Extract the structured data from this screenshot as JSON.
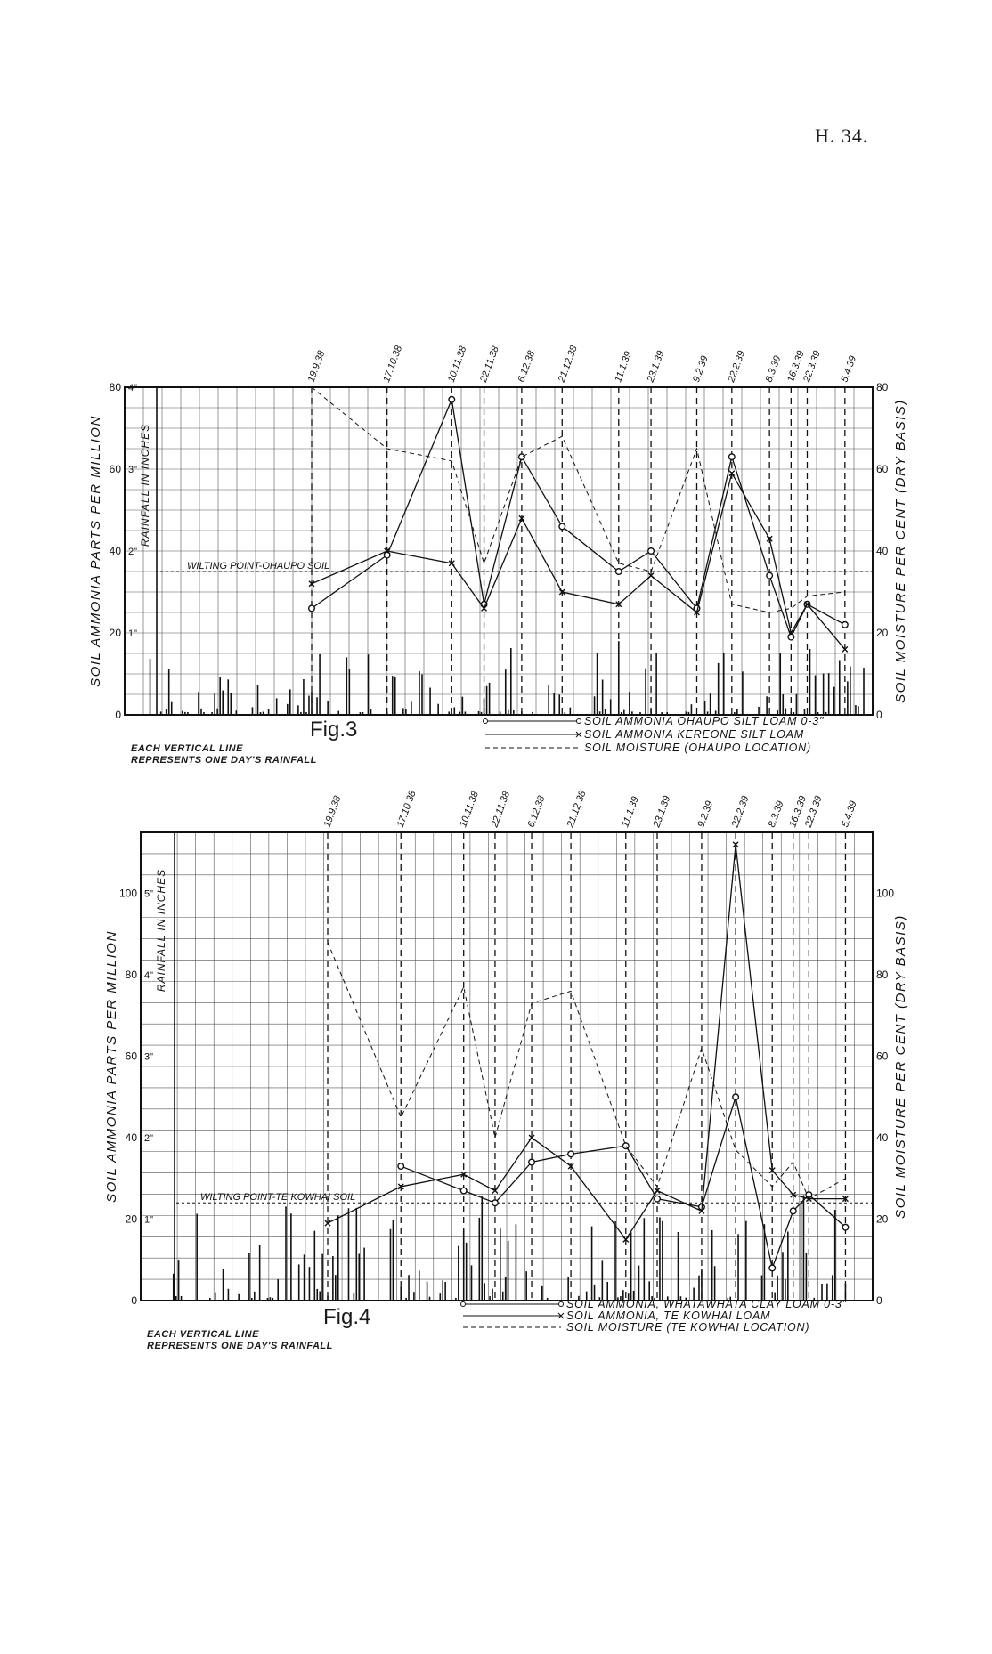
{
  "page_header": "H. 34.",
  "chart_data": [
    {
      "type": "line",
      "fig_label": "Fig.3",
      "note_lines": [
        "EACH VERTICAL LINE",
        "REPRESENTS ONE DAY'S RAINFALL"
      ],
      "left_axis_label": "SOIL AMMONIA PARTS PER MILLION",
      "rain_axis_label": "RAINFALL IN INCHES",
      "right_axis_label": "SOIL MOISTURE PER CENT (DRY BASIS)",
      "left_ticks": [
        "0",
        "20",
        "40",
        "60",
        "80"
      ],
      "rain_ticks": [
        "1\"",
        "2\"",
        "3\"",
        "4\""
      ],
      "right_ticks": [
        "0",
        "20",
        "40",
        "60",
        "80"
      ],
      "ylim": [
        0,
        80
      ],
      "xlim_days": [
        0,
        220
      ],
      "sample_dates": [
        "19.9.38",
        "17.10.38",
        "10.11.38",
        "22.11.38",
        "6.12.38",
        "21.12.38",
        "11.1.39",
        "23.1.39",
        "9.2.39",
        "22.2.39",
        "8.3.39",
        "16.3.39",
        "22.3.39",
        "5.4.39"
      ],
      "wilting_label": "WILTING POINT-OHAUPO SOIL",
      "wilting_value": 35,
      "series": [
        {
          "name": "SOIL AMMONIA OHAUPO SILT LOAM 0-3\"",
          "style": "solid-circle",
          "values": [
            26,
            39,
            77,
            27,
            63,
            46,
            35,
            40,
            26,
            63,
            34,
            19,
            27,
            22
          ]
        },
        {
          "name": "SOIL AMMONIA KEREONE SILT LOAM",
          "style": "solid-cross",
          "values": [
            32,
            40,
            37,
            26,
            48,
            30,
            27,
            34,
            25,
            59,
            43,
            20,
            27,
            16
          ]
        },
        {
          "name": "SOIL MOISTURE (OHAUPO LOCATION)",
          "style": "dashed",
          "values": [
            80,
            65,
            62,
            37,
            63,
            68,
            37,
            35,
            65,
            27,
            25,
            26,
            29,
            30
          ]
        }
      ]
    },
    {
      "type": "line",
      "fig_label": "Fig.4",
      "note_lines": [
        "EACH VERTICAL LINE",
        "REPRESENTS ONE DAY'S RAINFALL"
      ],
      "left_axis_label": "SOIL AMMONIA PARTS PER MILLION",
      "rain_axis_label": "RAINFALL IN INCHES",
      "right_axis_label": "SOIL MOISTURE PER CENT (DRY BASIS)",
      "left_ticks": [
        "0",
        "20",
        "40",
        "60",
        "80",
        "100"
      ],
      "rain_ticks": [
        "1\"",
        "2\"",
        "3\"",
        "4\"",
        "5\""
      ],
      "right_ticks": [
        "0",
        "20",
        "40",
        "60",
        "80",
        "100"
      ],
      "ylim": [
        0,
        115
      ],
      "xlim_days": [
        0,
        220
      ],
      "sample_dates": [
        "19.9.38",
        "17.10.38",
        "10.11.38",
        "22.11.38",
        "6.12.38",
        "21.12.38",
        "11.1.39",
        "23.1.39",
        "9.2.39",
        "22.2.39",
        "8.3.39",
        "16.3.39",
        "22.3.39",
        "5.4.39"
      ],
      "wilting_label": "WILTING POINT-TE KOWHAI SOIL",
      "wilting_value": 24,
      "series": [
        {
          "name": "SOIL AMMONIA, WHATAWHATA CLAY LOAM 0-3\"",
          "style": "solid-circle",
          "values": [
            null,
            33,
            27,
            24,
            34,
            36,
            38,
            25,
            23,
            50,
            8,
            22,
            26,
            18
          ]
        },
        {
          "name": "SOIL AMMONIA, TE KOWHAI LOAM",
          "style": "solid-cross",
          "values": [
            19,
            28,
            31,
            27,
            40,
            33,
            15,
            27,
            22,
            112,
            32,
            26,
            25,
            25
          ]
        },
        {
          "name": "SOIL MOISTURE (TE KOWHAI LOCATION)",
          "style": "dashed",
          "values": [
            88,
            45,
            77,
            40,
            73,
            76,
            38,
            28,
            62,
            37,
            28,
            34,
            25,
            30
          ]
        }
      ]
    }
  ]
}
